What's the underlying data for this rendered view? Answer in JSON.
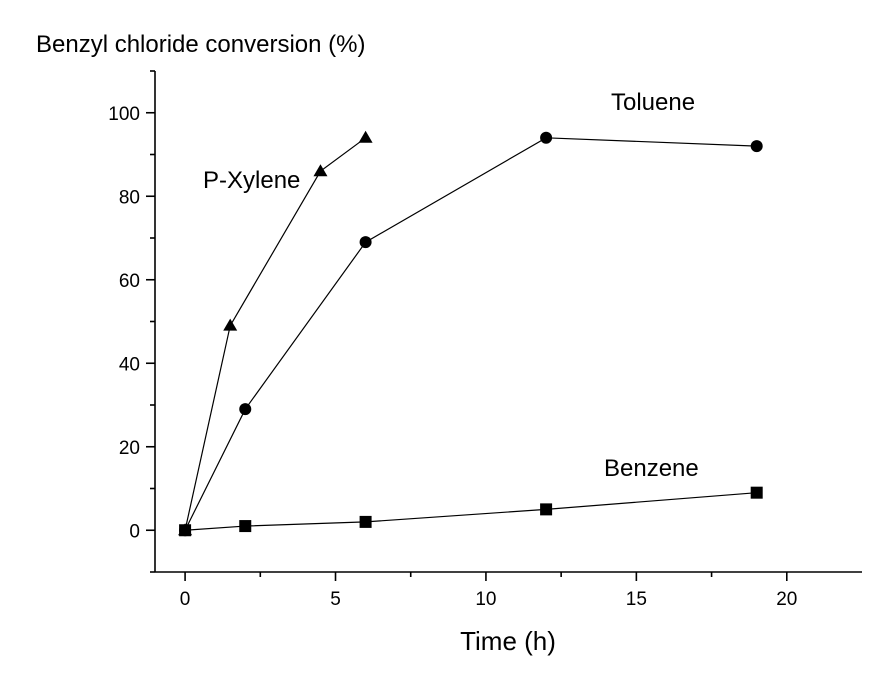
{
  "chart_data": {
    "type": "line",
    "title": "",
    "ylabel": "Benzyl chloride conversion (%)",
    "xlabel": "Time (h)",
    "xlim": [
      -1,
      22.5
    ],
    "ylim": [
      -10,
      110
    ],
    "x_ticks": [
      0,
      5,
      10,
      15,
      20
    ],
    "y_ticks": [
      0,
      20,
      40,
      60,
      80,
      100
    ],
    "grid": false,
    "series": [
      {
        "name": "P-Xylene",
        "marker": "triangle",
        "x": [
          0,
          1.5,
          4.5,
          6
        ],
        "y": [
          0,
          49,
          86,
          94
        ]
      },
      {
        "name": "Toluene",
        "marker": "circle",
        "x": [
          0,
          2,
          6,
          12,
          19
        ],
        "y": [
          0,
          29,
          69,
          94,
          92
        ]
      },
      {
        "name": "Benzene",
        "marker": "square",
        "x": [
          0,
          2,
          6,
          12,
          19
        ],
        "y": [
          0,
          1,
          2,
          5,
          9
        ]
      }
    ]
  }
}
